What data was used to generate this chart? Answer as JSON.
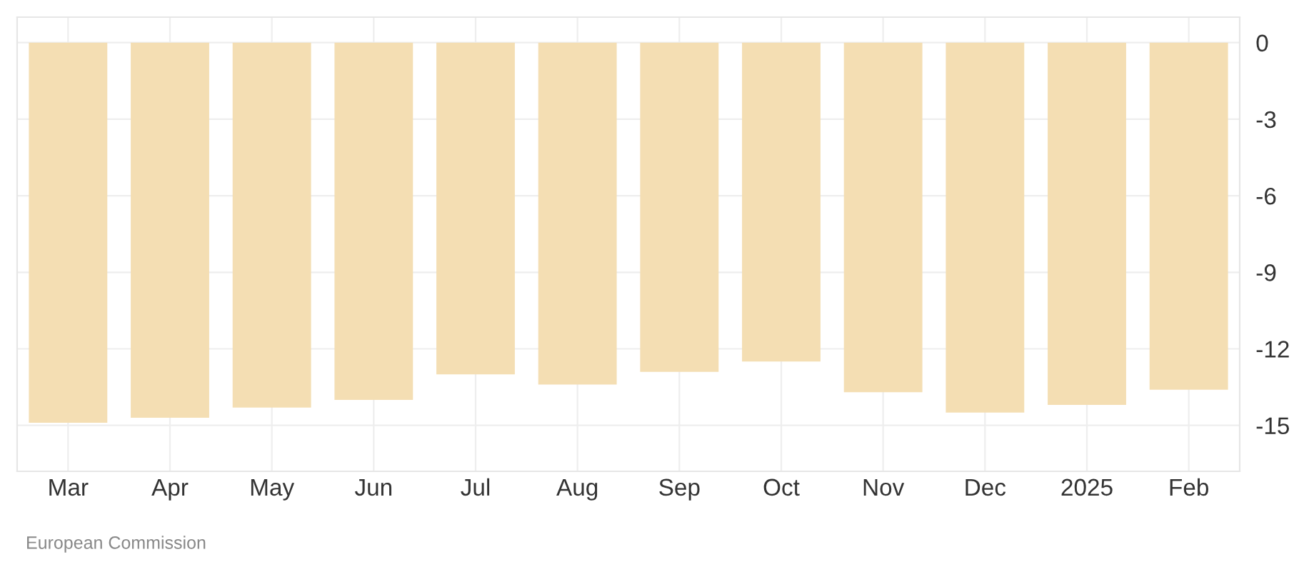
{
  "chart_data": {
    "type": "bar",
    "categories": [
      "Mar",
      "Apr",
      "May",
      "Jun",
      "Jul",
      "Aug",
      "Sep",
      "Oct",
      "Nov",
      "Dec",
      "2025",
      "Feb"
    ],
    "values": [
      -14.9,
      -14.7,
      -14.3,
      -14.0,
      -13.0,
      -13.4,
      -12.9,
      -12.5,
      -13.7,
      -14.5,
      -14.2,
      -13.6
    ],
    "color": "#f4deb3",
    "ylim": [
      -16.8,
      1.0
    ],
    "yticks": [
      0,
      -3,
      -6,
      -9,
      -12,
      -15
    ],
    "grid": true,
    "annotations": [
      "European Commission"
    ]
  }
}
